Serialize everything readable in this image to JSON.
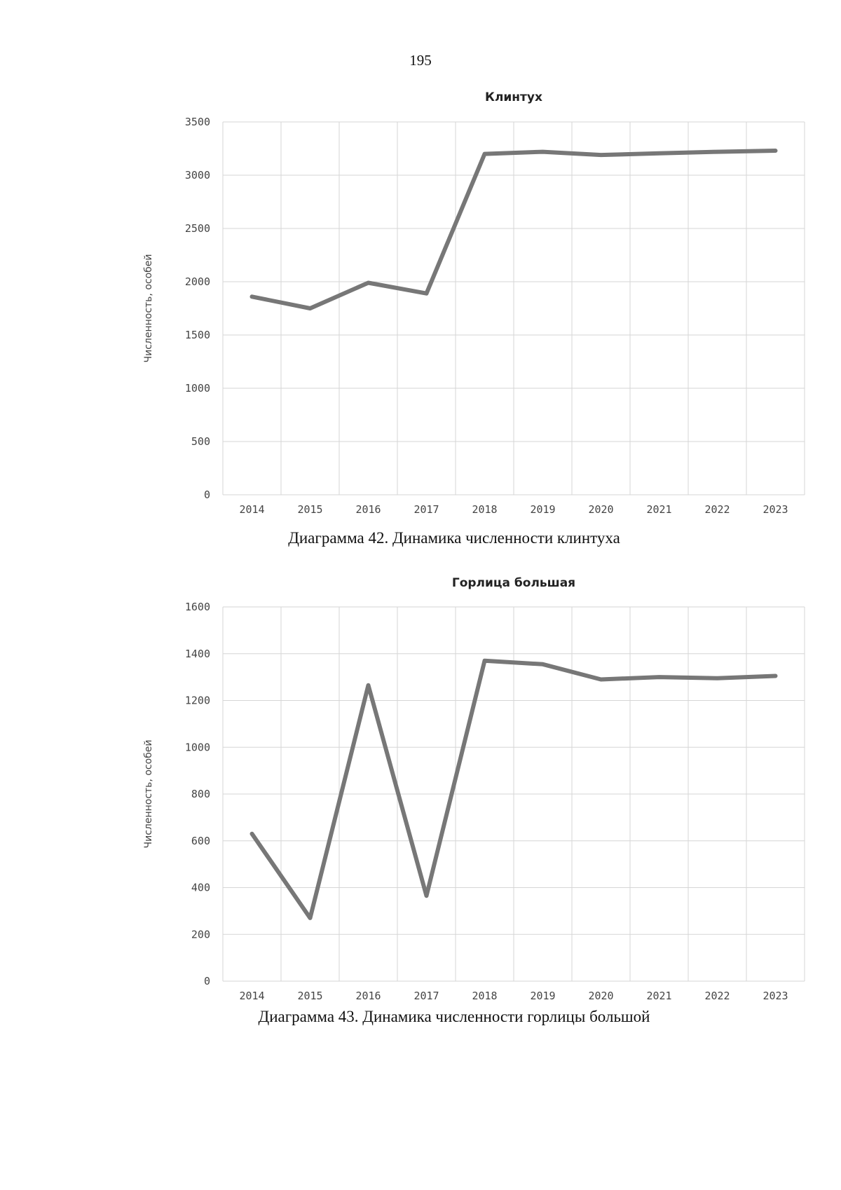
{
  "page_number": "195",
  "captions": [
    "Диаграмма 42. Динамика численности клинтуха",
    "Диаграмма 43. Динамика численности горлицы большой"
  ],
  "chart_data": [
    {
      "type": "line",
      "title": "Клинтух",
      "xlabel": "",
      "ylabel": "Численность, особей",
      "categories": [
        "2014",
        "2015",
        "2016",
        "2017",
        "2018",
        "2019",
        "2020",
        "2021",
        "2022",
        "2023"
      ],
      "series": [
        {
          "name": "Клинтух",
          "values": [
            1860,
            1750,
            1990,
            1890,
            3200,
            3220,
            3190,
            3205,
            3220,
            3230
          ]
        }
      ],
      "ylim": [
        0,
        3500
      ],
      "yticks": [
        0,
        500,
        1000,
        1500,
        2000,
        2500,
        3000,
        3500
      ],
      "grid": true,
      "legend": "none"
    },
    {
      "type": "line",
      "title": "Горлица большая",
      "xlabel": "",
      "ylabel": "Численность, особей",
      "categories": [
        "2014",
        "2015",
        "2016",
        "2017",
        "2018",
        "2019",
        "2020",
        "2021",
        "2022",
        "2023"
      ],
      "series": [
        {
          "name": "Горлица большая",
          "values": [
            630,
            270,
            1265,
            365,
            1370,
            1355,
            1290,
            1300,
            1295,
            1305
          ]
        }
      ],
      "ylim": [
        0,
        1600
      ],
      "yticks": [
        0,
        200,
        400,
        600,
        800,
        1000,
        1200,
        1400,
        1600
      ],
      "grid": true,
      "legend": "none"
    }
  ],
  "colors": {
    "line": "#777777",
    "grid": "#d6d6d6"
  }
}
